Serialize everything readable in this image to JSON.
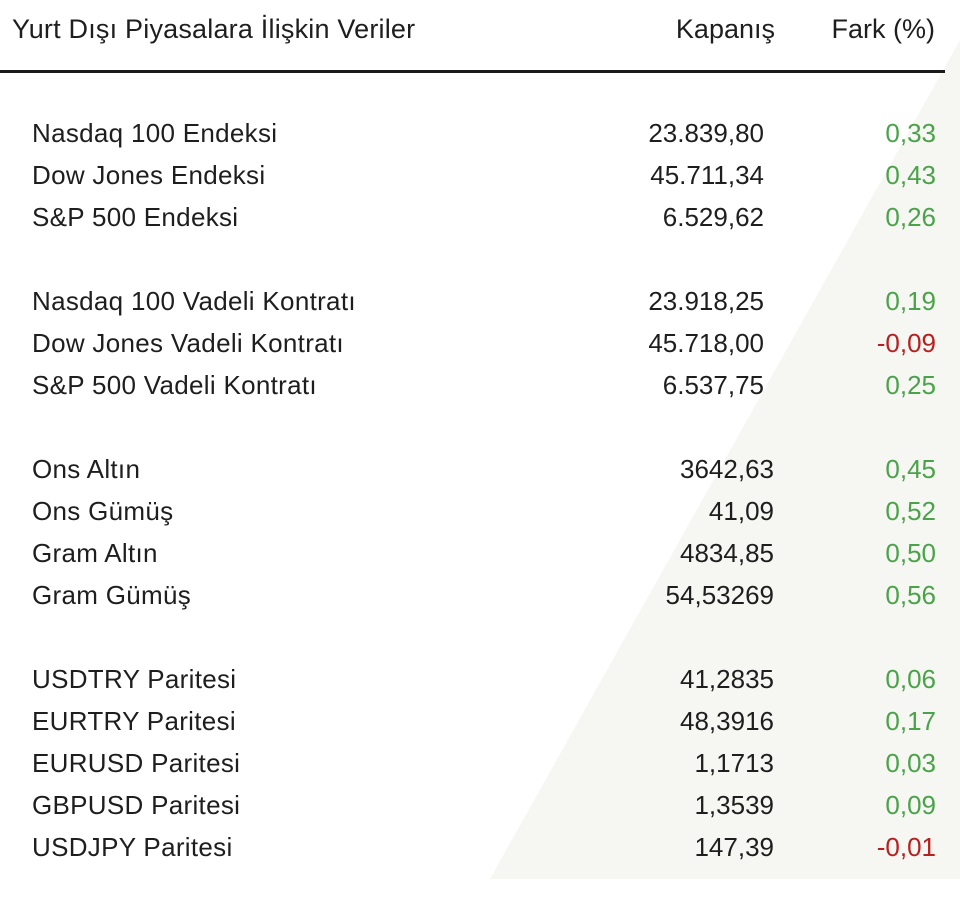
{
  "header": {
    "title": "Yurt Dışı Piyasalara İlişkin Veriler",
    "close_label": "Kapanış",
    "diff_label": "Fark (%)"
  },
  "colors": {
    "positive": "#4aa34a",
    "negative": "#b52020"
  },
  "groups": [
    {
      "rows": [
        {
          "name": "Nasdaq 100 Endeksi",
          "close": "23.839,80",
          "diff": "0,33",
          "trend": "pos"
        },
        {
          "name": "Dow Jones Endeksi",
          "close": "45.711,34",
          "diff": "0,43",
          "trend": "pos"
        },
        {
          "name": "S&P 500 Endeksi",
          "close": "6.529,62",
          "diff": "0,26",
          "trend": "pos"
        }
      ]
    },
    {
      "rows": [
        {
          "name": "Nasdaq 100 Vadeli Kontratı",
          "close": "23.918,25",
          "diff": "0,19",
          "trend": "pos"
        },
        {
          "name": "Dow Jones Vadeli Kontratı",
          "close": "45.718,00",
          "diff": "-0,09",
          "trend": "neg"
        },
        {
          "name": "S&P 500 Vadeli Kontratı",
          "close": "6.537,75",
          "diff": "0,25",
          "trend": "pos"
        }
      ]
    },
    {
      "rows": [
        {
          "name": "Ons Altın",
          "close": "3642,63",
          "diff": "0,45",
          "trend": "pos"
        },
        {
          "name": "Ons Gümüş",
          "close": "41,09",
          "diff": "0,52",
          "trend": "pos"
        },
        {
          "name": "Gram Altın",
          "close": "4834,85",
          "diff": "0,50",
          "trend": "pos"
        },
        {
          "name": "Gram Gümüş",
          "close": "54,53269",
          "diff": "0,56",
          "trend": "pos"
        }
      ]
    },
    {
      "rows": [
        {
          "name": "USDTRY Paritesi",
          "close": "41,2835",
          "diff": "0,06",
          "trend": "pos"
        },
        {
          "name": "EURTRY Paritesi",
          "close": "48,3916",
          "diff": "0,17",
          "trend": "pos"
        },
        {
          "name": "EURUSD Paritesi",
          "close": "1,1713",
          "diff": "0,03",
          "trend": "pos"
        },
        {
          "name": "GBPUSD Paritesi",
          "close": "1,3539",
          "diff": "0,09",
          "trend": "pos"
        },
        {
          "name": "USDJPY Paritesi",
          "close": "147,39",
          "diff": "-0,01",
          "trend": "neg"
        }
      ]
    }
  ]
}
